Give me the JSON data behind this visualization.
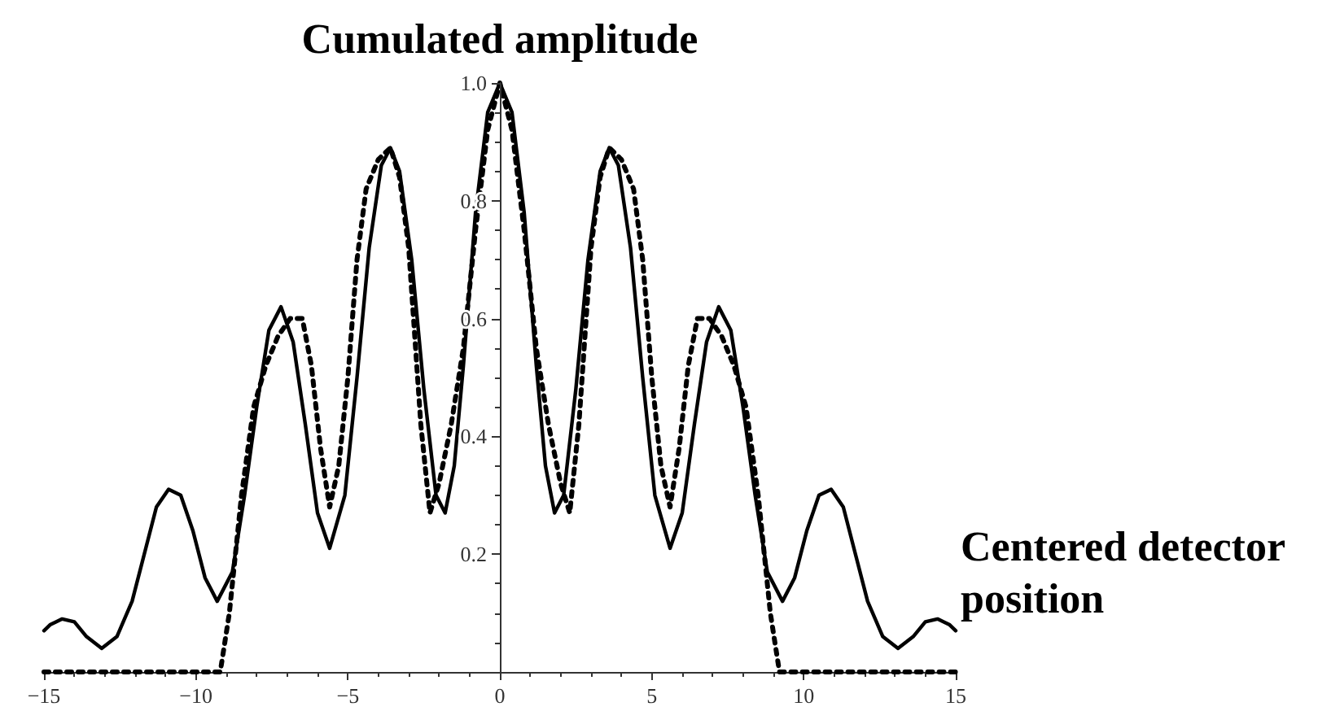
{
  "chart_data": {
    "type": "line",
    "ylabel": "Cumulated amplitude",
    "xlabel": "Centered detector position",
    "xlim": [
      -15,
      15
    ],
    "xticks": [
      {
        "value": -15,
        "label": "−15"
      },
      {
        "value": -10,
        "label": "−10"
      },
      {
        "value": -5,
        "label": "−5"
      },
      0,
      5,
      10,
      15
    ],
    "ylim": [
      0,
      1
    ],
    "yticks": [
      0.2,
      0.4,
      0.6,
      0.8,
      {
        "value": 1,
        "label": "1.0"
      }
    ],
    "grid": false,
    "marker": "none",
    "series": [
      {
        "color": "#000000",
        "line_style": "solid",
        "x": [
          -15,
          -14.8,
          -14.4,
          -14,
          -13.6,
          -13.1,
          -12.6,
          -12.1,
          -11.7,
          -11.3,
          -10.9,
          -10.5,
          -10.1,
          -9.7,
          -9.3,
          -8.8,
          -8.4,
          -8,
          -7.6,
          -7.2,
          -6.8,
          -6.4,
          -6,
          -5.6,
          -5.1,
          -4.7,
          -4.3,
          -3.9,
          -3.6,
          -3.3,
          -2.9,
          -2.5,
          -2.1,
          -1.8,
          -1.5,
          -1.2,
          -0.8,
          -0.4,
          0,
          0.4,
          0.8,
          1.2,
          1.5,
          1.8,
          2.1,
          2.5,
          2.9,
          3.3,
          3.6,
          3.9,
          4.3,
          4.7,
          5.1,
          5.6,
          6,
          6.4,
          6.8,
          7.2,
          7.6,
          8,
          8.4,
          8.8,
          9.3,
          9.7,
          10.1,
          10.5,
          10.9,
          11.3,
          11.7,
          12.1,
          12.6,
          13.1,
          13.6,
          14,
          14.4,
          14.8,
          15
        ],
        "values": [
          0.07,
          0.08,
          0.09,
          0.085,
          0.06,
          0.04,
          0.06,
          0.12,
          0.2,
          0.28,
          0.31,
          0.3,
          0.24,
          0.16,
          0.12,
          0.17,
          0.3,
          0.45,
          0.58,
          0.62,
          0.56,
          0.42,
          0.27,
          0.21,
          0.3,
          0.5,
          0.72,
          0.86,
          0.89,
          0.85,
          0.7,
          0.48,
          0.3,
          0.27,
          0.35,
          0.52,
          0.78,
          0.95,
          1,
          0.95,
          0.78,
          0.52,
          0.35,
          0.27,
          0.3,
          0.48,
          0.7,
          0.85,
          0.89,
          0.86,
          0.72,
          0.5,
          0.3,
          0.21,
          0.27,
          0.42,
          0.56,
          0.62,
          0.58,
          0.45,
          0.3,
          0.17,
          0.12,
          0.16,
          0.24,
          0.3,
          0.31,
          0.28,
          0.2,
          0.12,
          0.06,
          0.04,
          0.06,
          0.085,
          0.09,
          0.08,
          0.07
        ]
      },
      {
        "color": "#000000",
        "line_style": "dotted",
        "x": [
          -15,
          -9.2,
          -8.9,
          -8.5,
          -8.1,
          -7.7,
          -7.3,
          -6.9,
          -6.5,
          -6.2,
          -5.9,
          -5.6,
          -5.3,
          -5,
          -4.7,
          -4.4,
          -4,
          -3.6,
          -3.3,
          -3,
          -2.6,
          -2.3,
          -2,
          -1.6,
          -1.2,
          -0.8,
          -0.4,
          0,
          0.4,
          0.8,
          1.2,
          1.6,
          2,
          2.3,
          2.6,
          3,
          3.3,
          3.6,
          4,
          4.4,
          4.7,
          5,
          5.3,
          5.6,
          5.9,
          6.2,
          6.5,
          6.9,
          7.3,
          7.7,
          8.1,
          8.5,
          8.9,
          9.2,
          15
        ],
        "values": [
          0,
          0,
          0.1,
          0.3,
          0.45,
          0.52,
          0.57,
          0.6,
          0.6,
          0.52,
          0.38,
          0.28,
          0.35,
          0.5,
          0.7,
          0.82,
          0.87,
          0.89,
          0.84,
          0.72,
          0.42,
          0.27,
          0.32,
          0.42,
          0.55,
          0.75,
          0.92,
          1,
          0.92,
          0.75,
          0.55,
          0.42,
          0.32,
          0.27,
          0.42,
          0.72,
          0.84,
          0.89,
          0.87,
          0.82,
          0.7,
          0.5,
          0.35,
          0.28,
          0.38,
          0.52,
          0.6,
          0.6,
          0.57,
          0.52,
          0.45,
          0.3,
          0.1,
          0,
          0
        ]
      }
    ]
  }
}
